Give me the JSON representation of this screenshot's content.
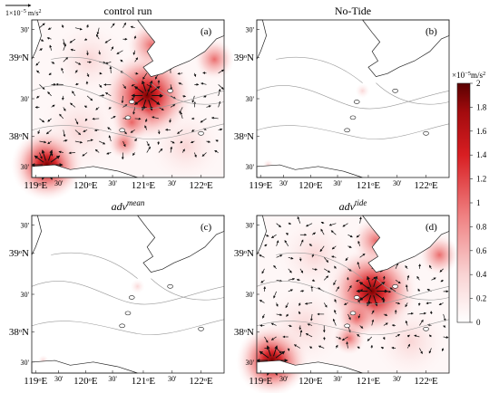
{
  "figure": {
    "scale_arrow": {
      "label": "1×10",
      "exponent": "−5",
      "unit": "m/s",
      "unit_exp": "2"
    },
    "colorbar": {
      "label_prefix": "×10",
      "label_exp": "−5",
      "label_unit": "m/s",
      "label_unit_exp": "2",
      "ticks": [
        "2",
        "1.8",
        "1.6",
        "1.4",
        "1.2",
        "1",
        "0.8",
        "0.6",
        "0.4",
        "0.2",
        "0"
      ],
      "colormap": [
        "#ffffff",
        "#f4a7a7",
        "#e4383a",
        "#b40f12",
        "#5a0000"
      ]
    }
  },
  "panels": [
    {
      "title": "control run",
      "title_kind": "plain",
      "tag": "(a)",
      "yticks": [
        "30'",
        "39ᵒN",
        "30'",
        "38ᵒN",
        "30'"
      ],
      "xticks": [
        "119ᵒE",
        "30'",
        "120ᵒE",
        "30'",
        "121ᵒE",
        "30'",
        "122ᵒE"
      ],
      "intensity": "high"
    },
    {
      "title": "No-Tide",
      "title_kind": "plain",
      "tag": "(b)",
      "yticks": [
        "30'",
        "39ᵒN",
        "30'",
        "38ᵒN",
        "30'"
      ],
      "xticks": [
        "119ᵒE",
        "30'",
        "120ᵒE",
        "30'",
        "121ᵒE",
        "30'",
        "122ᵒE"
      ],
      "intensity": "none"
    },
    {
      "title": "adv",
      "title_sup": "mean",
      "title_kind": "italic",
      "tag": "(c)",
      "yticks": [
        "30'",
        "39ᵒN",
        "30'",
        "38ᵒN",
        "30'"
      ],
      "xticks": [
        "119ᵒE",
        "30'",
        "120ᵒE",
        "30'",
        "121ᵒE",
        "30'",
        "122ᵒE"
      ],
      "intensity": "none"
    },
    {
      "title": "adv",
      "title_sup": "tide",
      "title_kind": "italic",
      "tag": "(d)",
      "yticks": [
        "30'",
        "39ᵒN",
        "30'",
        "38ᵒN",
        "30'"
      ],
      "xticks": [
        "119ᵒE",
        "30'",
        "120ᵒE",
        "30'",
        "121ᵒE",
        "30'",
        "122ᵒE"
      ],
      "intensity": "high"
    }
  ],
  "chart_data": {
    "type": "heatmap",
    "variable": "tidal/advection acceleration magnitude with vectors",
    "units": "×10⁻⁵ m/s²",
    "color_range": [
      0,
      2
    ],
    "colorbar_ticks": [
      0,
      0.2,
      0.4,
      0.6,
      0.8,
      1,
      1.2,
      1.4,
      1.6,
      1.8,
      2
    ],
    "x_ticks_deg": [
      119,
      119.5,
      120,
      120.5,
      121,
      121.5,
      122
    ],
    "y_ticks_deg": [
      37.5,
      38,
      38.5,
      39,
      39.5
    ],
    "panels": [
      "control run",
      "No-Tide",
      "adv mean",
      "adv tide"
    ],
    "hotspots_control_run": [
      {
        "lon": 119.05,
        "lat": 37.6,
        "value": 2.0
      },
      {
        "lon": 121.1,
        "lat": 38.85,
        "value": 1.8
      },
      {
        "lon": 121.15,
        "lat": 39.35,
        "value": 1.2
      },
      {
        "lon": 120.85,
        "lat": 38.25,
        "value": 0.8
      },
      {
        "lon": 122.5,
        "lat": 39.3,
        "value": 0.6
      }
    ],
    "hotspots_adv_tide": [
      {
        "lon": 119.05,
        "lat": 37.55,
        "value": 2.0
      },
      {
        "lon": 121.1,
        "lat": 38.85,
        "value": 1.8
      },
      {
        "lon": 121.15,
        "lat": 39.35,
        "value": 1.1
      },
      {
        "lon": 120.85,
        "lat": 38.2,
        "value": 0.7
      },
      {
        "lon": 122.4,
        "lat": 37.7,
        "value": 0.5
      }
    ]
  }
}
